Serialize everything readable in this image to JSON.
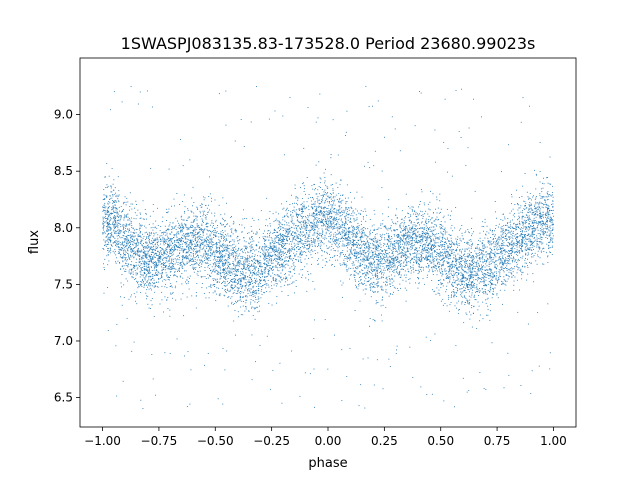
{
  "chart_data": {
    "type": "scatter",
    "title": "1SWASPJ083135.83-173528.0 Period 23680.99023s",
    "xlabel": "phase",
    "ylabel": "flux",
    "xlim": [
      -1.1,
      1.1
    ],
    "ylim": [
      6.24,
      9.5
    ],
    "x_ticks": [
      -1.0,
      -0.75,
      -0.5,
      -0.25,
      0.0,
      0.25,
      0.5,
      0.75,
      1.0
    ],
    "x_tick_labels": [
      "−1.00",
      "−0.75",
      "−0.50",
      "−0.25",
      "0.00",
      "0.25",
      "0.50",
      "0.75",
      "1.00"
    ],
    "y_ticks": [
      6.5,
      7.0,
      7.5,
      8.0,
      8.5,
      9.0
    ],
    "y_tick_labels": [
      "6.5",
      "7.0",
      "7.5",
      "8.0",
      "8.5",
      "9.0"
    ],
    "grid": false,
    "legend": "none",
    "marker_color": "#1f77b4",
    "phase_range": [
      -1.0,
      1.0
    ],
    "folded_profile": {
      "phase": [
        0.0,
        0.05,
        0.1,
        0.15,
        0.2,
        0.25,
        0.3,
        0.35,
        0.4,
        0.45,
        0.5,
        0.55,
        0.6,
        0.65,
        0.7,
        0.75,
        0.8,
        0.85,
        0.9,
        0.95,
        1.0
      ],
      "flux": [
        8.08,
        8.02,
        7.9,
        7.78,
        7.7,
        7.72,
        7.78,
        7.84,
        7.88,
        7.86,
        7.8,
        7.7,
        7.62,
        7.6,
        7.64,
        7.72,
        7.82,
        7.92,
        8.0,
        8.06,
        8.08
      ]
    },
    "scatter_sigma": 0.17,
    "outlier_flux_range": [
      6.4,
      9.25
    ]
  }
}
